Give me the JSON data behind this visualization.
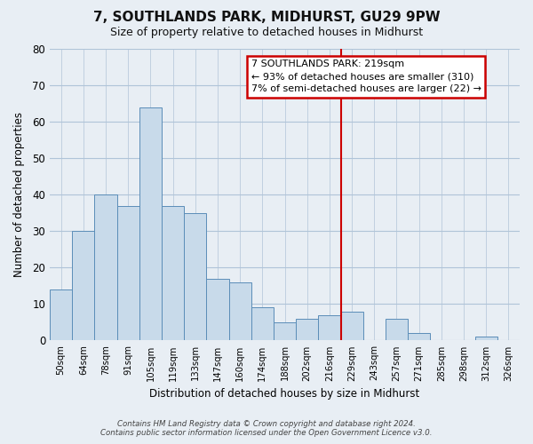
{
  "title": "7, SOUTHLANDS PARK, MIDHURST, GU29 9PW",
  "subtitle": "Size of property relative to detached houses in Midhurst",
  "xlabel": "Distribution of detached houses by size in Midhurst",
  "ylabel": "Number of detached properties",
  "bar_labels": [
    "50sqm",
    "64sqm",
    "78sqm",
    "91sqm",
    "105sqm",
    "119sqm",
    "133sqm",
    "147sqm",
    "160sqm",
    "174sqm",
    "188sqm",
    "202sqm",
    "216sqm",
    "229sqm",
    "243sqm",
    "257sqm",
    "271sqm",
    "285sqm",
    "298sqm",
    "312sqm",
    "326sqm"
  ],
  "bar_heights": [
    14,
    30,
    40,
    37,
    64,
    37,
    35,
    17,
    16,
    9,
    5,
    6,
    7,
    8,
    0,
    6,
    2,
    0,
    0,
    1,
    0
  ],
  "bar_color": "#c8daea",
  "bar_edge_color": "#5b8db8",
  "vline_x_index": 12.5,
  "vline_color": "#cc0000",
  "ylim": [
    0,
    80
  ],
  "yticks": [
    0,
    10,
    20,
    30,
    40,
    50,
    60,
    70,
    80
  ],
  "annotation_title": "7 SOUTHLANDS PARK: 219sqm",
  "annotation_line1": "← 93% of detached houses are smaller (310)",
  "annotation_line2": "7% of semi-detached houses are larger (22) →",
  "footer1": "Contains HM Land Registry data © Crown copyright and database right 2024.",
  "footer2": "Contains public sector information licensed under the Open Government Licence v3.0.",
  "fig_bg_color": "#e8eef4",
  "plot_bg_color": "#e8eef4",
  "grid_color": "#b0c4d8",
  "title_fontsize": 11,
  "subtitle_fontsize": 9
}
